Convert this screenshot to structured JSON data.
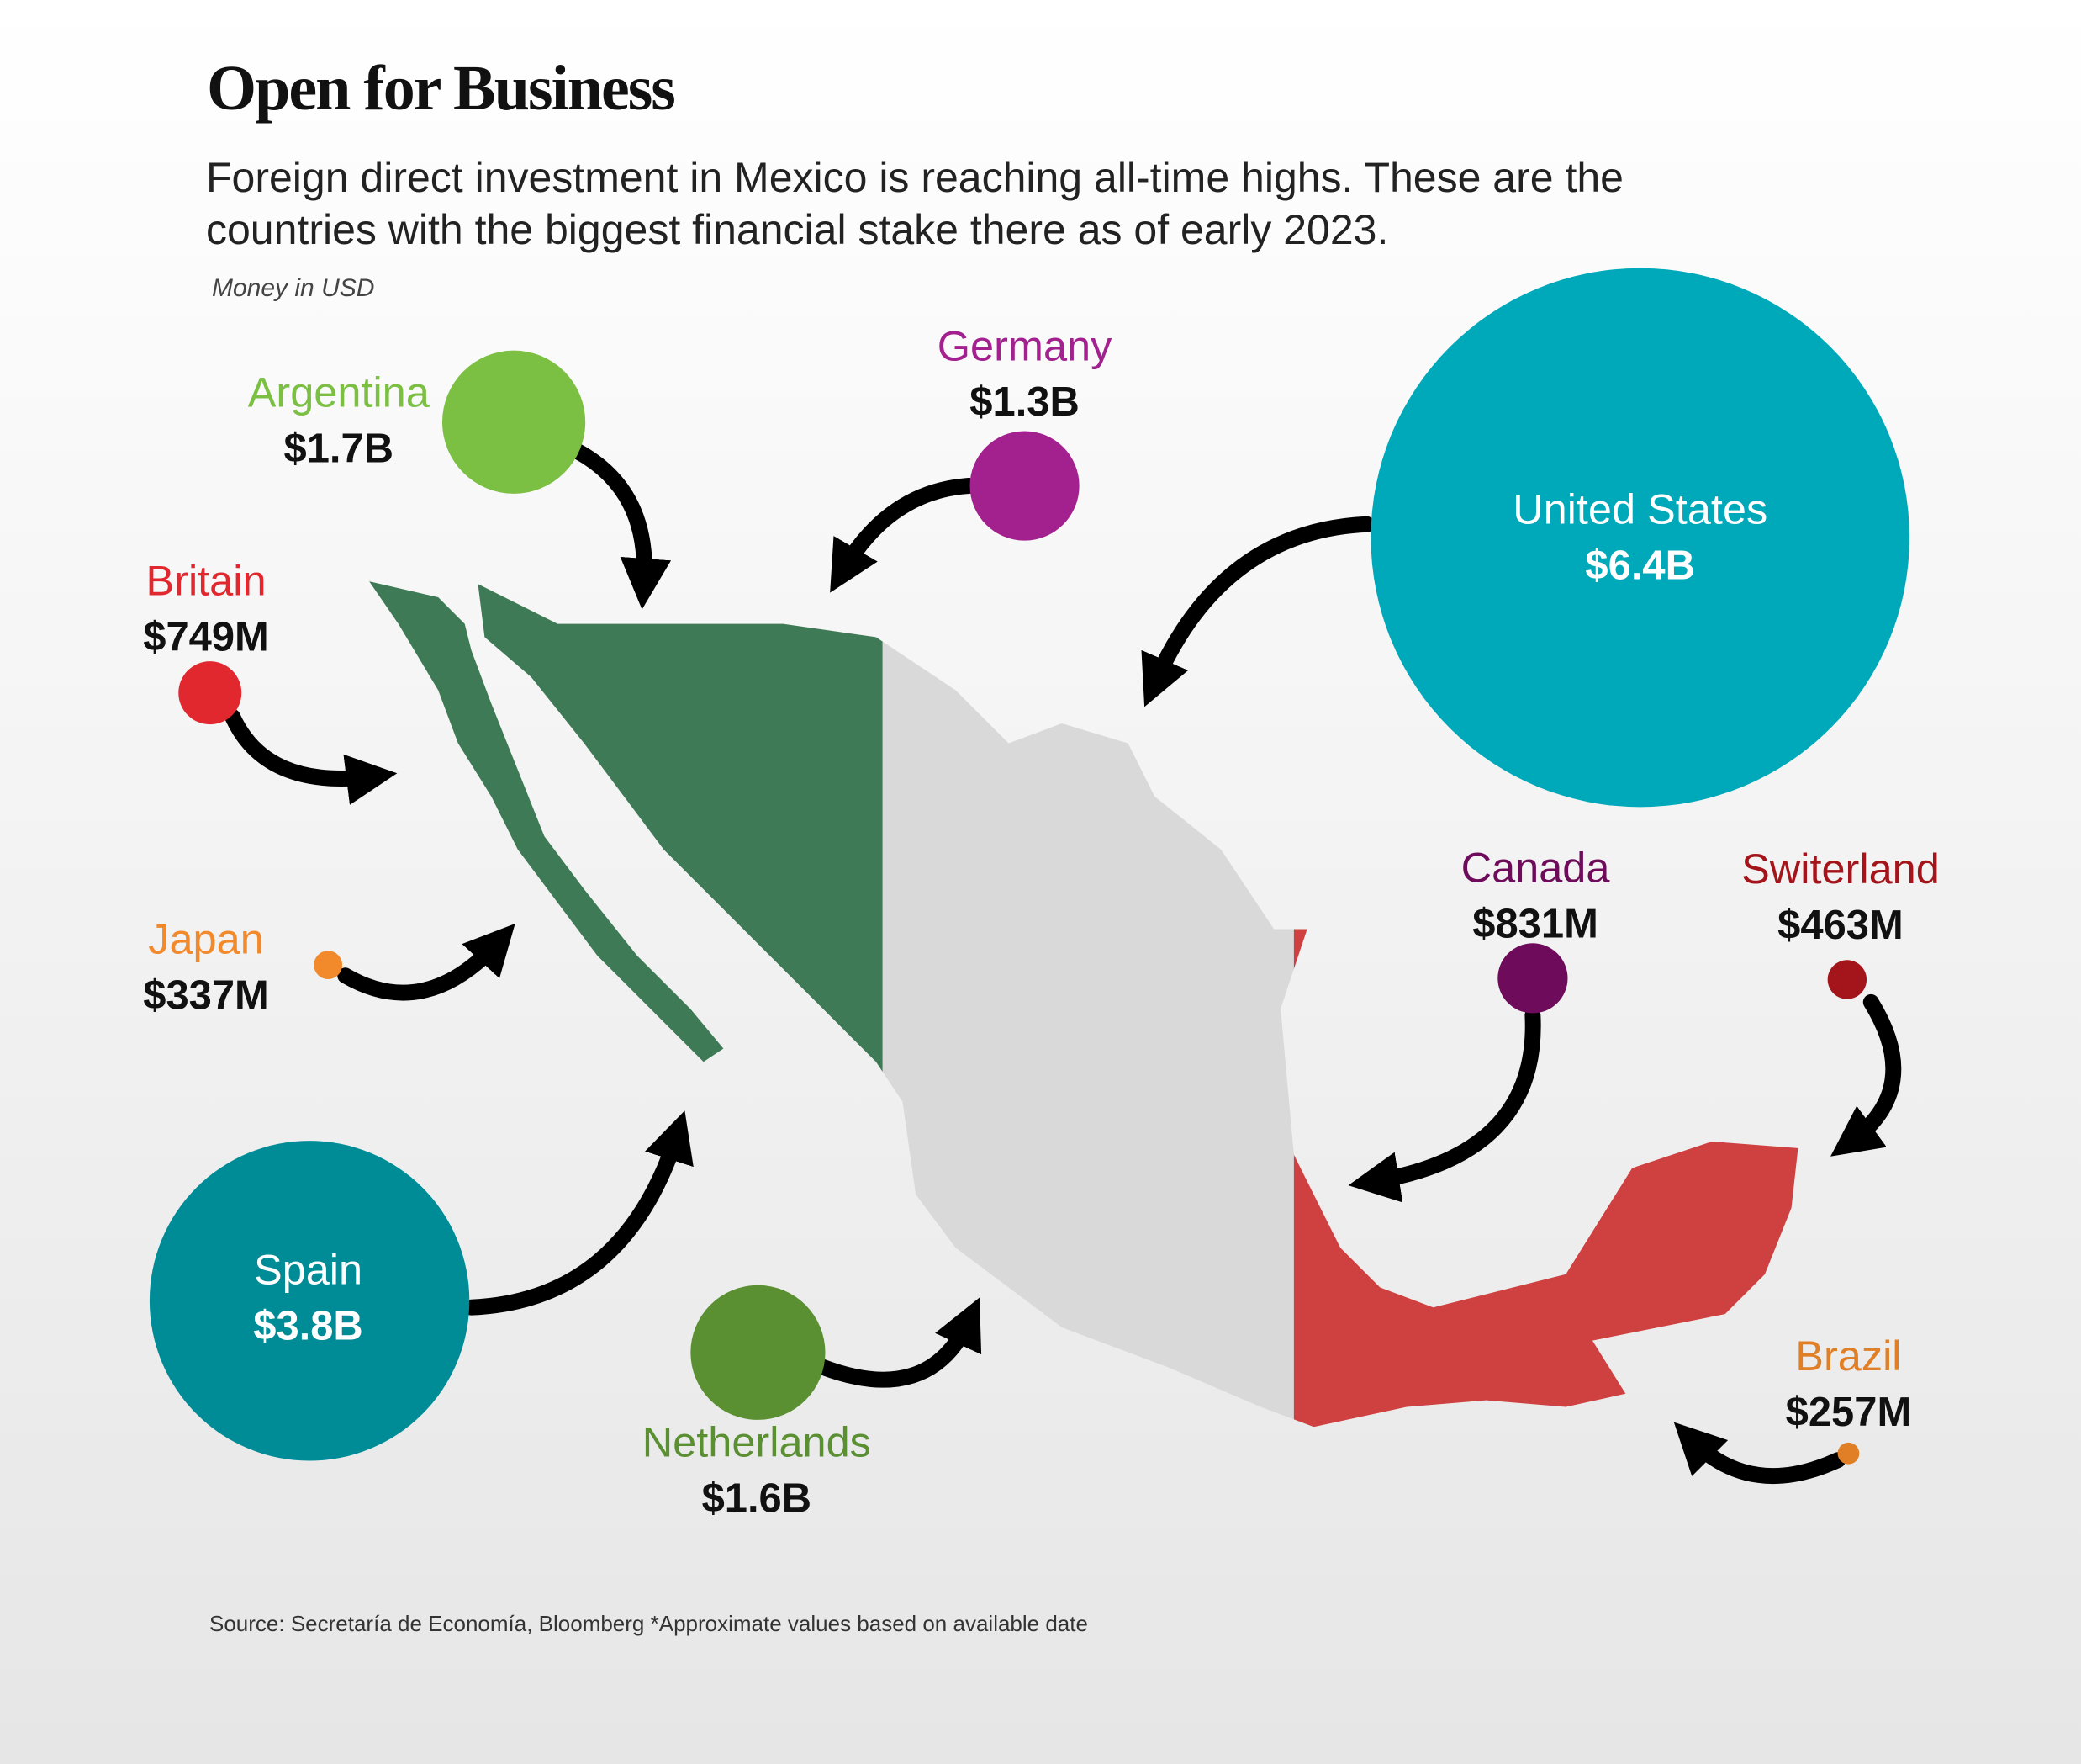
{
  "chart_data": {
    "type": "bubble",
    "title": "Open for Business",
    "subtitle": "Foreign direct investment in Mexico is reaching all-time highs. These are the countries with the biggest financial stake there as of early 2023.",
    "note": "Money in USD",
    "source": "Source: Secretaría de Economía, Bloomberg *Approximate values based on available date",
    "categories": [
      "Argentina",
      "Germany",
      "United States",
      "Britain",
      "Japan",
      "Canada",
      "Switerland",
      "Spain",
      "Netherlands",
      "Brazil"
    ],
    "values": [
      1700000000,
      1300000000,
      6400000000,
      749000000,
      337000000,
      831000000,
      463000000,
      3800000000,
      1600000000,
      257000000
    ],
    "value_labels": [
      "$1.7B",
      "$1.3B",
      "$6.4B",
      "$749M",
      "$337M",
      "$831M",
      "$463M",
      "$3.8B",
      "$1.6B",
      "$257M"
    ],
    "colors": [
      "#7bbf43",
      "#a3218f",
      "#00a9ba",
      "#e0282e",
      "#f28a2c",
      "#6e0b5a",
      "#a3151a",
      "#008c97",
      "#5a8f32",
      "#e07f25"
    ]
  }
}
